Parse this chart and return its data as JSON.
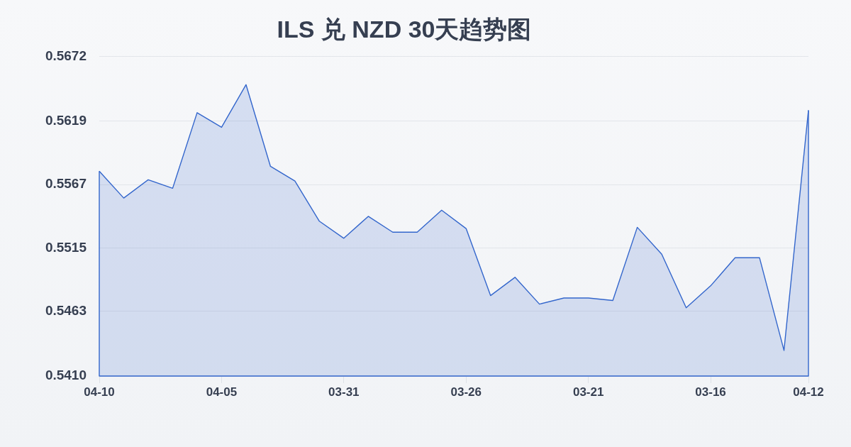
{
  "chart_data": {
    "type": "area",
    "title": "ILS 兑 NZD 30天趋势图",
    "categories": [
      "04-10",
      null,
      null,
      null,
      null,
      "04-05",
      null,
      null,
      null,
      null,
      "03-31",
      null,
      null,
      null,
      null,
      "03-26",
      null,
      null,
      null,
      null,
      "03-21",
      null,
      null,
      null,
      null,
      "03-16",
      null,
      null,
      null,
      "04-12"
    ],
    "values": [
      0.5578,
      0.5556,
      0.5571,
      0.5564,
      0.5626,
      0.5614,
      0.5649,
      0.5582,
      0.557,
      0.5537,
      0.5523,
      0.5541,
      0.5528,
      0.5528,
      0.5546,
      0.5531,
      0.5476,
      0.5491,
      0.5469,
      0.5474,
      0.5474,
      0.5472,
      0.5532,
      0.551,
      0.5466,
      0.5484,
      0.5507,
      0.5507,
      0.5431,
      0.5628
    ],
    "color": "#3366cc",
    "ylim": [
      0.541,
      0.5672
    ],
    "yticks": [
      {
        "value": 0.541,
        "label": "0.5410"
      },
      0.5463,
      0.5515,
      0.5567,
      0.5619,
      0.5672
    ],
    "grid": "y"
  }
}
